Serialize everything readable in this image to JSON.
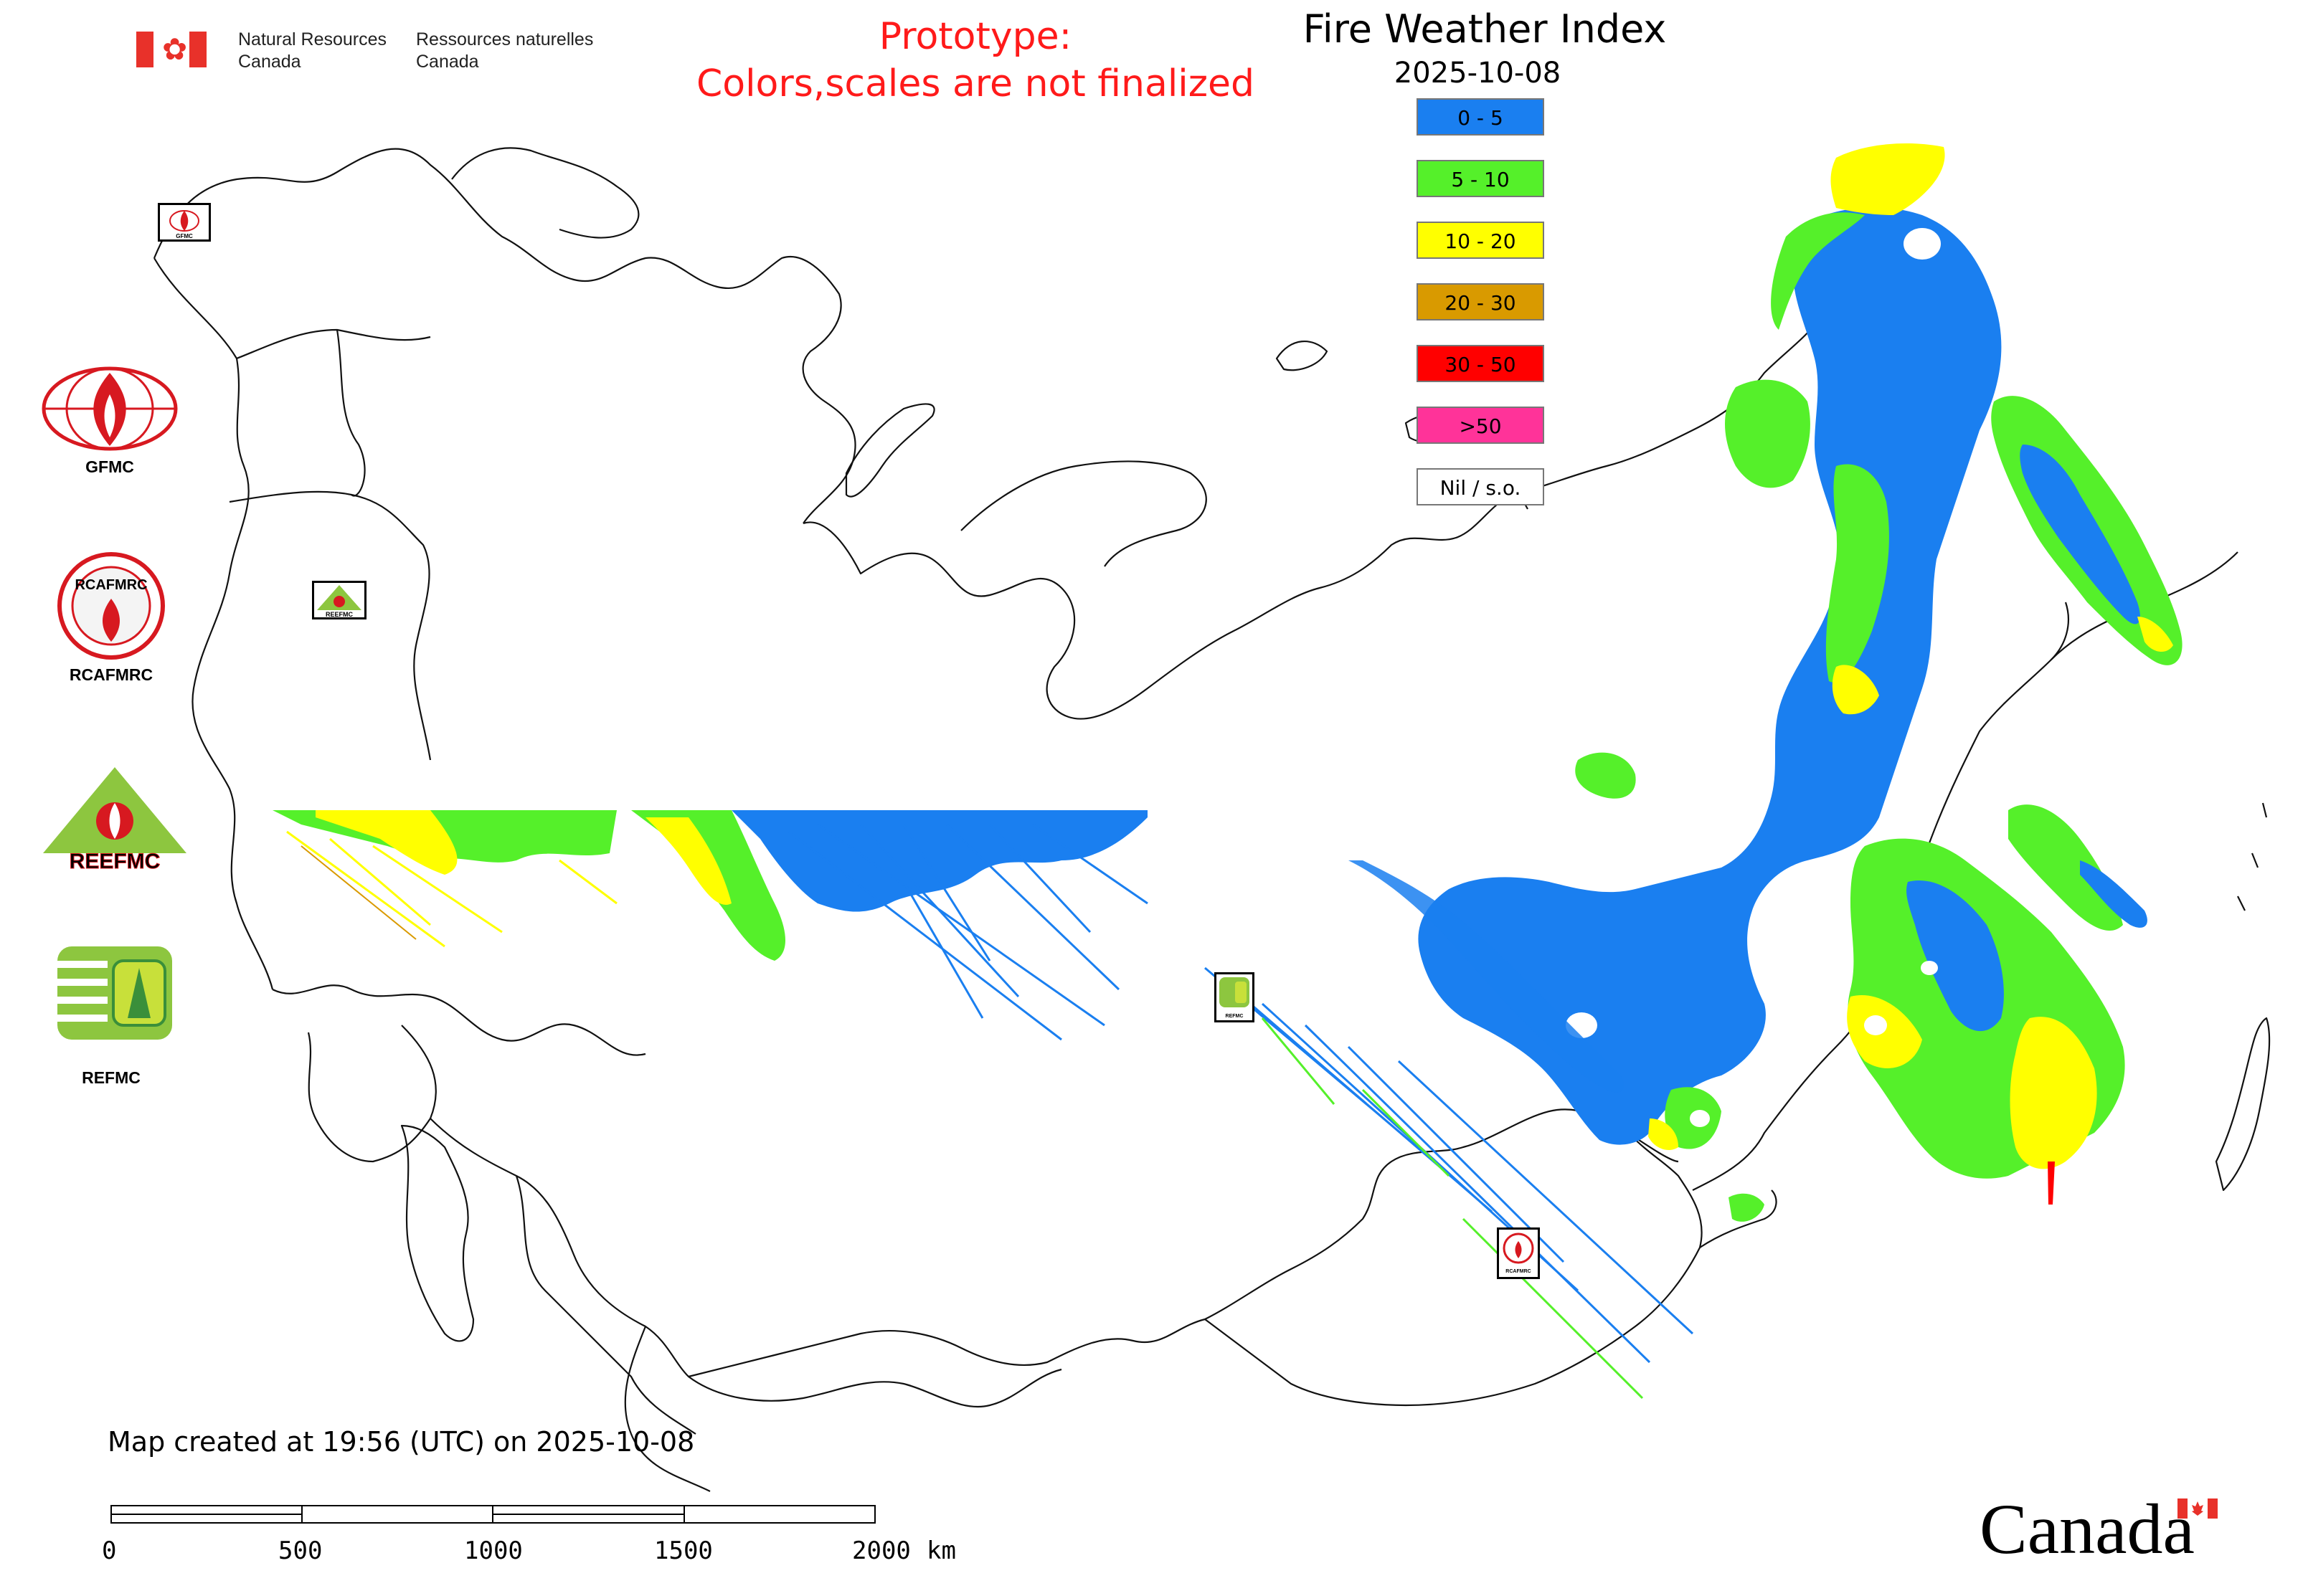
{
  "header": {
    "dept_en_line1": "Natural Resources",
    "dept_en_line2": "Canada",
    "dept_fr_line1": "Ressources naturelles",
    "dept_fr_line2": "Canada",
    "prototype_line1": "Prototype:",
    "prototype_line2": "Colors,scales are not finalized",
    "title": "Fire Weather Index",
    "date": "2025-10-08"
  },
  "legend": [
    {
      "label": "0 - 5",
      "color": "#1a7ff0"
    },
    {
      "label": "5 - 10",
      "color": "#55f02a"
    },
    {
      "label": "10 - 20",
      "color": "#ffff00"
    },
    {
      "label": "20 - 30",
      "color": "#d99a00"
    },
    {
      "label": "30 - 50",
      "color": "#ff0000"
    },
    {
      "label": ">50",
      "color": "#ff3399"
    },
    {
      "label": "Nil / s.o.",
      "color": "#ffffff"
    }
  ],
  "logos": {
    "gfmc": "GFMC",
    "rcafmrc": "RCAFMRC",
    "reefmc": "REFMC",
    "reefmc_wordmark": "REEFMC",
    "refmc": "REFMC",
    "mini_gfmc": "GFMC",
    "mini_reefmc": "REEFMC",
    "mini_refmc": "REFMC",
    "mini_rcafmrc": "RCAFMRC"
  },
  "footer": {
    "created": "Map created at 19:56 (UTC) on 2025-10-08",
    "wordmark": "Canada"
  },
  "scale": {
    "ticks": [
      "0",
      "500",
      "1000",
      "1500",
      "2000"
    ],
    "unit": "km"
  }
}
